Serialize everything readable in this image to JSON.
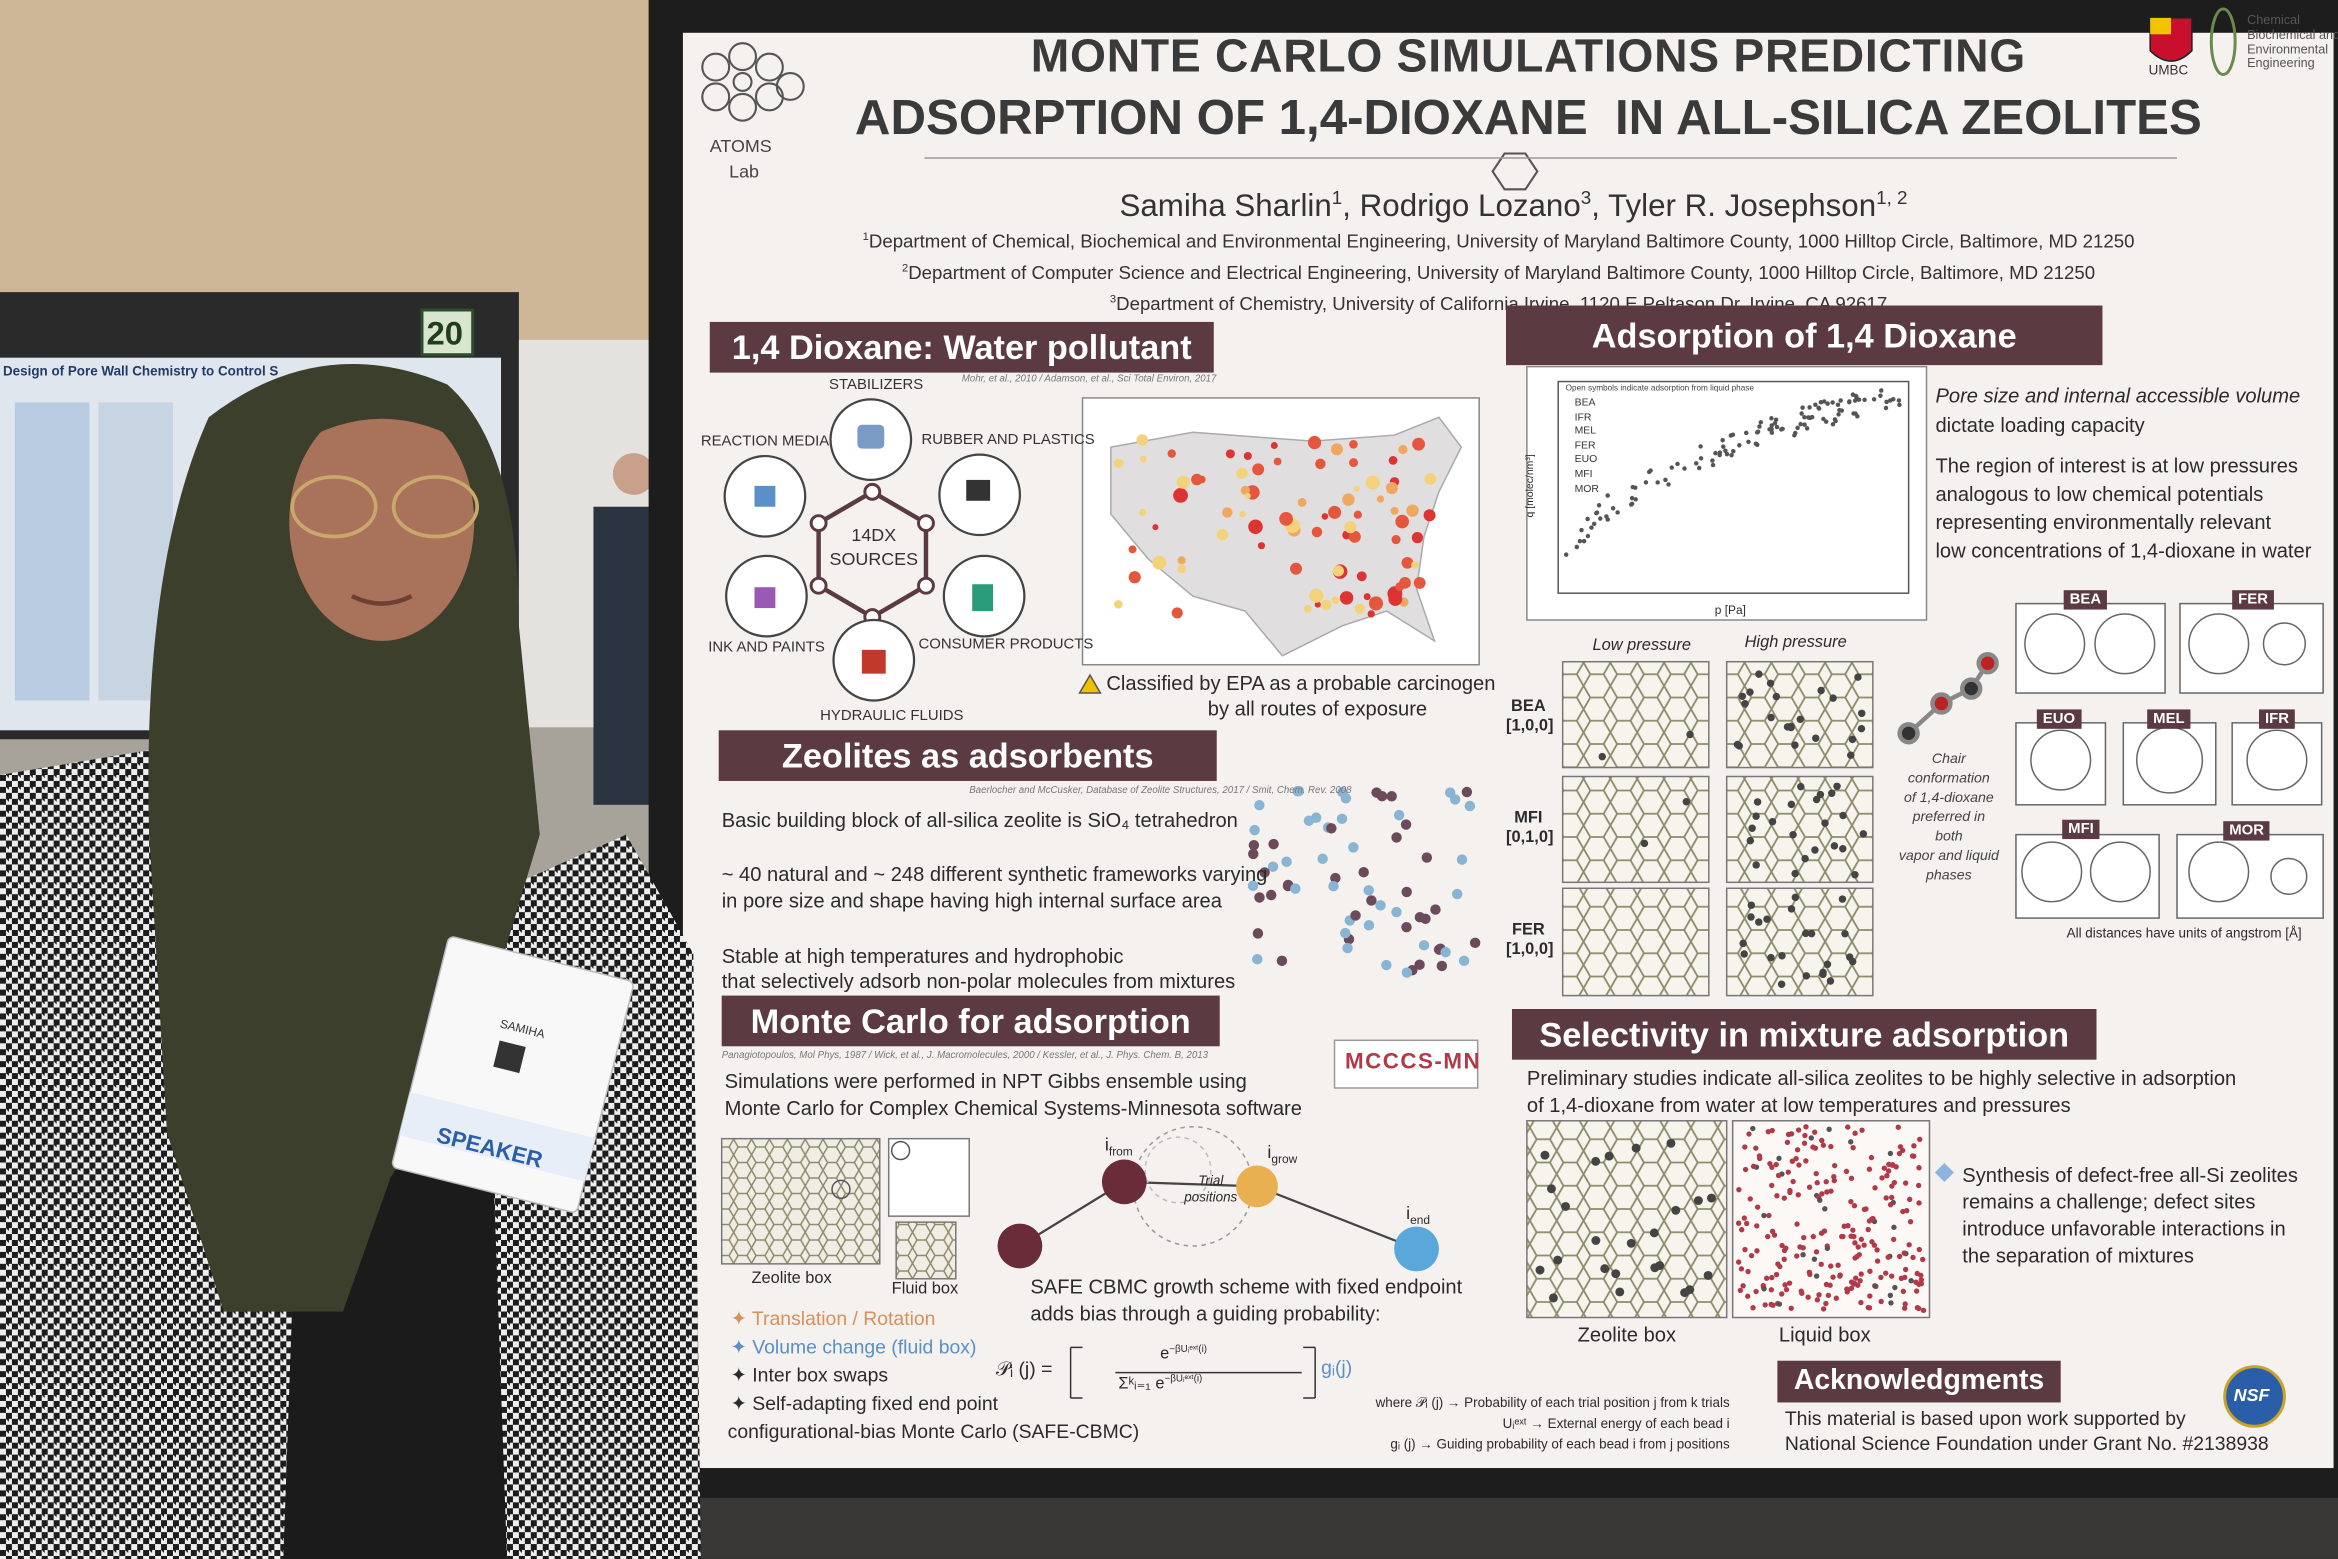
{
  "background": {
    "booth_number": "20",
    "neighbor_poster_title": "Design of Pore Wall Chemistry to Control S",
    "badge_name": "SAMIHA",
    "badge_role": "SPEAKER"
  },
  "poster": {
    "lab_logo": [
      "ATOMS",
      "Lab"
    ],
    "university": "UMBC",
    "department_logo": [
      "Chemical",
      "Biochemical and",
      "Environmental",
      "Engineering"
    ],
    "title": [
      "MONTE CARLO SIMULATIONS PREDICTING",
      "ADSORPTION OF 1,4-DIOXANE  IN ALL-SILICA ZEOLITES"
    ],
    "authors": [
      {
        "name": "Samiha Sharlin",
        "sup": "1",
        "sep": ","
      },
      {
        "name": "Rodrigo Lozano",
        "sup": "3",
        "sep": ","
      },
      {
        "name": "Tyler R. Josephson",
        "sup": "1, 2"
      }
    ],
    "affiliations": [
      {
        "sup": "1",
        "text": "Department of Chemical, Biochemical and Environmental Engineering, University of Maryland Baltimore County, 1000 Hilltop Circle, Baltimore, MD 21250"
      },
      {
        "sup": "2",
        "text": "Department of Computer Science and Electrical Engineering, University of Maryland Baltimore County, 1000 Hilltop Circle, Baltimore, MD 21250"
      },
      {
        "sup": "3",
        "text": "Department of Chemistry, University of California Irvine, 1120 E Peltason Dr, Irvine, CA 92617"
      }
    ],
    "sections": {
      "pollutant": {
        "heading": "1,4 Dioxane: Water pollutant",
        "citation": "Mohr, et al., 2010 / Adamson, et al., Sci Total Environ, 2017",
        "hub": [
          "14DX",
          "SOURCES"
        ],
        "sources": [
          "STABILIZERS",
          "RUBBER AND PLASTICS",
          "CONSUMER PRODUCTS",
          "HYDRAULIC FLUIDS",
          "INK AND PAINTS",
          "REACTION MEDIA"
        ],
        "caption": [
          "Classified by EPA as a probable carcinogen",
          "by all routes of exposure"
        ]
      },
      "adsorption": {
        "heading": "Adsorption of 1,4 Dioxane",
        "plot_note": "Open symbols indicate adsorption from liquid phase",
        "plot_legend": [
          "BEA",
          "IFR",
          "MEL",
          "FER",
          "EUO",
          "MFI",
          "MOR"
        ],
        "plot_ylabel": "q [molec/nm³]",
        "plot_xlabel": "p [Pa]",
        "text": [
          "Pore size and internal accessible volume",
          "dictate loading capacity",
          "The region of interest is at low pressures",
          "analogous to low chemical potentials",
          "representing environmentally relevant",
          "low concentrations of 1,4-dioxane in water"
        ],
        "pressure_labels": [
          "Low pressure",
          "High pressure"
        ],
        "frameworks": [
          {
            "name": "BEA",
            "direction": "[1,0,0]"
          },
          {
            "name": "MFI",
            "direction": "[0,1,0]"
          },
          {
            "name": "FER",
            "direction": "[1,0,0]"
          }
        ],
        "molecule_note": [
          "Chair",
          "conformation",
          "of 1,4-dioxane",
          "preferred in",
          "both",
          "vapor and liquid",
          "phases"
        ],
        "pore_labels": [
          "BEA",
          "FER",
          "EUO",
          "MEL",
          "IFR",
          "MFI",
          "MOR"
        ],
        "pore_note": "All distances have units of angstrom [Å]"
      },
      "zeolites": {
        "heading": "Zeolites as adsorbents",
        "citation": "Baerlocher and McCusker, Database of Zeolite Structures, 2017 / Smit, Chem. Rev. 2008",
        "text": [
          "Basic building block of all-silica zeolite is SiO₄ tetrahedron",
          "~ 40 natural and ~ 248 different synthetic frameworks varying",
          "in pore size and shape having high internal surface area",
          "Stable at high temperatures and hydrophobic",
          "that selectively adsorb non-polar molecules from mixtures"
        ]
      },
      "monte_carlo": {
        "heading": "Monte Carlo for adsorption",
        "citation": "Panagiotopoulos, Mol Phys, 1987 / Wick, et al., J. Macromolecules, 2000 / Kessler, et al., J. Phys. Chem. B, 2013",
        "text": [
          "Simulations were performed in NPT Gibbs ensemble using",
          "Monte Carlo for Complex Chemical Systems-Minnesota software"
        ],
        "software": "MCCCS-MN",
        "box_labels": [
          "Zeolite box",
          "Fluid box"
        ],
        "moves": [
          "Translation / Rotation",
          "Volume change (fluid box)",
          "Inter box swaps",
          "Self-adapting fixed end point",
          "configurational-bias Monte Carlo (SAFE-CBMC)"
        ],
        "nodes": [
          {
            "symbol": "i",
            "sub": "from"
          },
          {
            "symbol": "i",
            "sub": "grow"
          },
          {
            "symbol": "i",
            "sub": "end"
          }
        ],
        "trial_label": "Trial positions",
        "scheme": [
          "SAFE CBMC growth scheme with fixed endpoint",
          "adds bias through a guiding probability:"
        ],
        "formula": {
          "lhs": "𝒫ᵢ (j) =",
          "base": "e",
          "exp": "−βUᵢᵉˣᵗ(i)",
          "sum": "Σᵏᵢ₌₁",
          "factor": "gᵢ(j)"
        },
        "legend": [
          "where 𝒫ᵢ (j) → Probability of each trial position j from k trials",
          "Uᵢᵉˣᵗ → External energy of each bead i",
          "gᵢ (j) → Guiding probability of each bead i from j positions"
        ]
      },
      "selectivity": {
        "heading": "Selectivity in mixture adsorption",
        "text": [
          "Preliminary studies indicate all-silica zeolites to be highly selective in adsorption",
          "of 1,4-dioxane from water at low temperatures and pressures"
        ],
        "box_labels": [
          "Zeolite box",
          "Liquid box"
        ],
        "note": [
          "Synthesis of defect-free all-Si zeolites",
          "remains a challenge; defect sites",
          "introduce unfavorable interactions in",
          "the separation of mixtures"
        ]
      },
      "acknowledgments": {
        "heading": "Acknowledgments",
        "text": [
          "This material is based upon work supported by",
          "National Science Foundation under Grant No. #2138938"
        ],
        "logo": "NSF"
      }
    }
  }
}
